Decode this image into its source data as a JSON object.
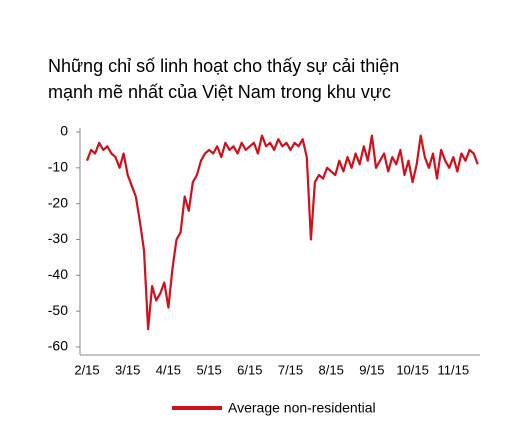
{
  "chart_data": {
    "type": "line",
    "title": [
      "Những chỉ số linh hoạt cho thấy sự cải thiện",
      "mạnh mẽ nhất của Việt Nam trong khu vực"
    ],
    "categories": [
      "2/15",
      null,
      null,
      null,
      null,
      null,
      null,
      null,
      null,
      null,
      "3/15",
      null,
      null,
      null,
      null,
      null,
      null,
      null,
      null,
      null,
      "4/15",
      null,
      null,
      null,
      null,
      null,
      null,
      null,
      null,
      null,
      "5/15",
      null,
      null,
      null,
      null,
      null,
      null,
      null,
      null,
      null,
      "6/15",
      null,
      null,
      null,
      null,
      null,
      null,
      null,
      null,
      null,
      "7/15",
      null,
      null,
      null,
      null,
      null,
      null,
      null,
      null,
      null,
      "8/15",
      null,
      null,
      null,
      null,
      null,
      null,
      null,
      null,
      null,
      "9/15",
      null,
      null,
      null,
      null,
      null,
      null,
      null,
      null,
      null,
      "10/15",
      null,
      null,
      null,
      null,
      null,
      null,
      null,
      null,
      null,
      "11/15",
      null,
      null,
      null,
      null,
      null,
      null
    ],
    "series": [
      {
        "name": "Average non-residential",
        "color": "#d0101b",
        "values": [
          -8,
          -5,
          -6,
          -3,
          -5,
          -4,
          -6,
          -7,
          -10,
          -6,
          -12,
          -15,
          -18,
          -25,
          -33,
          -55,
          -43,
          -47,
          -45,
          -42,
          -49,
          -38,
          -30,
          -28,
          -18,
          -22,
          -14,
          -12,
          -8,
          -6,
          -5,
          -6,
          -4,
          -7,
          -3,
          -5,
          -4,
          -6,
          -3,
          -5,
          -4,
          -3,
          -6,
          -1,
          -4,
          -3,
          -5,
          -2,
          -4,
          -3,
          -5,
          -3,
          -4,
          -2,
          -7,
          -30,
          -14,
          -12,
          -13,
          -10,
          -11,
          -12,
          -8,
          -11,
          -7,
          -10,
          -6,
          -9,
          -4,
          -8,
          -1,
          -10,
          -8,
          -6,
          -11,
          -7,
          -9,
          -5,
          -12,
          -8,
          -14,
          -9,
          -1,
          -7,
          -10,
          -6,
          -13,
          -5,
          -8,
          -10,
          -7,
          -11,
          -6,
          -8,
          -5,
          -6,
          -9
        ]
      }
    ],
    "ylim": [
      -60,
      0
    ],
    "yticks": [
      0,
      -10,
      -20,
      -30,
      -40,
      -50,
      -60
    ]
  }
}
